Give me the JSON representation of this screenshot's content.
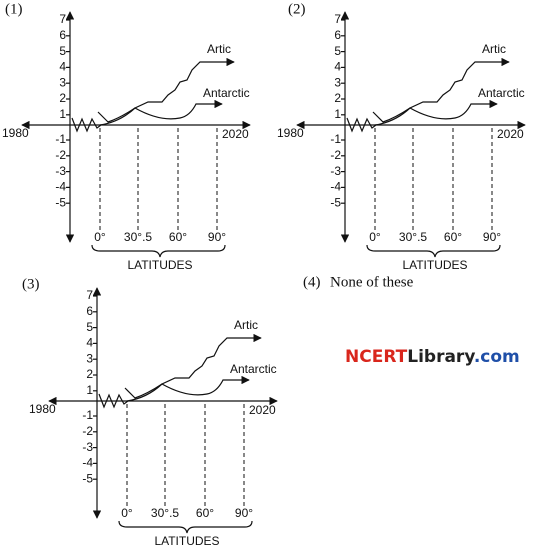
{
  "figures": [
    {
      "label": "(1)",
      "y_ticks": [
        "7",
        "6",
        "5",
        "4",
        "3",
        "2",
        "1",
        "-1",
        "-2",
        "-3",
        "-4",
        "-5"
      ],
      "x_start": "1980",
      "x_end": "2020",
      "artic": "Artic",
      "antarctic": "Antarctic",
      "latitudes": [
        "0°",
        "30°.5",
        "60°",
        "90°"
      ],
      "x_axis_title": "LATITUDES"
    },
    {
      "label": "(2)",
      "y_ticks": [
        "7",
        "6",
        "5",
        "4",
        "3",
        "2",
        "1",
        "-1",
        "-2",
        "-3",
        "-4",
        "-5"
      ],
      "x_start": "1980",
      "x_end": "2020",
      "artic": "Artic",
      "antarctic": "Antarctic",
      "latitudes": [
        "0°",
        "30°.5",
        "60°",
        "90°"
      ],
      "x_axis_title": "LATITUDES"
    },
    {
      "label": "(3)",
      "y_ticks": [
        "7",
        "6",
        "5",
        "4",
        "3",
        "2",
        "1",
        "-1",
        "-2",
        "-3",
        "-4",
        "-5"
      ],
      "x_start": "1980",
      "x_end": "2020",
      "artic": "Artic",
      "antarctic": "Antarctic",
      "latitudes": [
        "0°",
        "30°.5",
        "60°",
        "90°"
      ],
      "x_axis_title": "LATITUDES"
    }
  ],
  "option_4": {
    "label": "(4)",
    "text": "None of these"
  },
  "watermark": {
    "part1": "NCERT",
    "part2": "Library",
    "part3": ".com"
  }
}
